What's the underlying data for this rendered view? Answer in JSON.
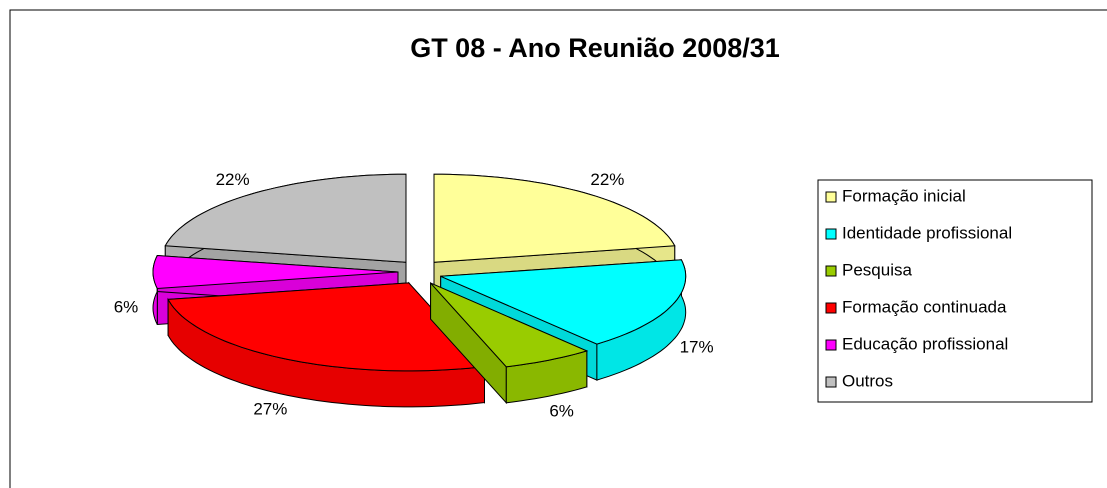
{
  "chart_data": {
    "type": "pie",
    "title": "GT 08 - Ano Reunião 2008/31",
    "categories": [
      "Formação inicial",
      "Identidade profissional",
      "Pesquisa",
      "Formação continuada",
      "Educação profissional",
      "Outros"
    ],
    "values": [
      22,
      17,
      6,
      27,
      6,
      22
    ],
    "value_labels": [
      "22%",
      "17%",
      "6%",
      "27%",
      "6%",
      "22%"
    ],
    "colors": [
      "#ffff99",
      "#00ffff",
      "#99cc00",
      "#ff0000",
      "#ff00ff",
      "#c0c0c0"
    ],
    "legend": "right"
  }
}
